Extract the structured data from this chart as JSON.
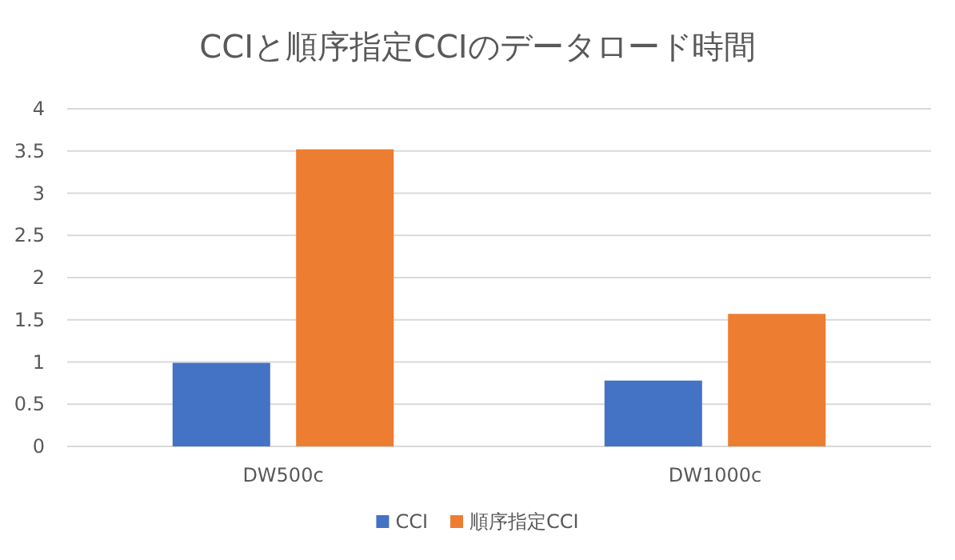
{
  "chart_data": {
    "type": "bar",
    "title": "CCIと順序指定CCIのデータロード時間",
    "categories": [
      "DW500c",
      "DW1000c"
    ],
    "series": [
      {
        "name": "CCI",
        "color": "#4472c4",
        "values": [
          0.99,
          0.78
        ]
      },
      {
        "name": "順序指定CCI",
        "color": "#ed7d31",
        "values": [
          3.52,
          1.57
        ]
      }
    ],
    "ylim": [
      0,
      4
    ],
    "yticks": [
      0,
      0.5,
      1,
      1.5,
      2,
      2.5,
      3,
      3.5,
      4
    ],
    "grid": "y",
    "legend": "bottom"
  }
}
